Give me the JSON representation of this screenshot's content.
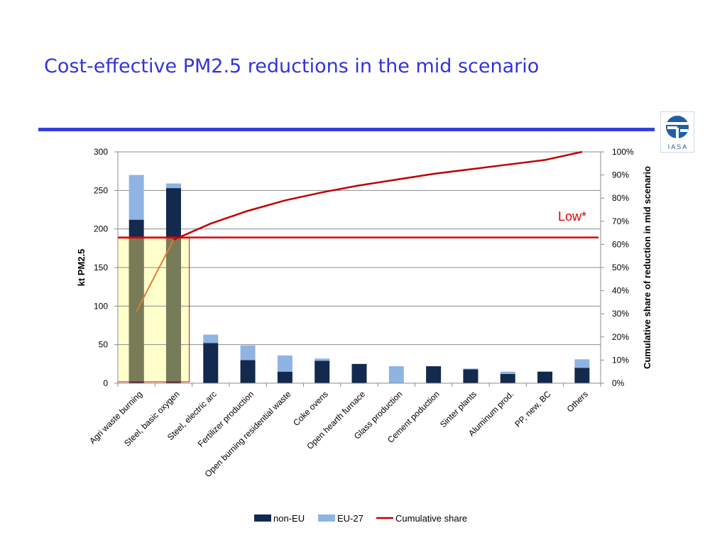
{
  "slide": {
    "title": "Cost-effective PM2.5 reductions in the mid scenario",
    "logo_text": "I A S A"
  },
  "chart_data": {
    "type": "bar",
    "stacked": true,
    "categories": [
      "Agri waste burning",
      "Steel, basic oxygen",
      "Steel, electric arc",
      "Fertilizer production",
      "Open burning residential waste",
      "Coke ovens",
      "Open hearth furnace",
      "Glass production",
      "Cement poduction",
      "Sinter plants",
      "Aluminum prod.",
      "PP, new, BC",
      "Others"
    ],
    "series": [
      {
        "name": "non-EU",
        "type": "bar",
        "color": "#132a4e",
        "values": [
          212,
          253,
          52,
          30,
          15,
          29,
          25,
          0,
          22,
          18,
          12,
          15,
          20
        ]
      },
      {
        "name": "EU-27",
        "type": "bar",
        "color": "#8fb4e3",
        "values": [
          58,
          6,
          11,
          19,
          21,
          3,
          0,
          22,
          0,
          1,
          3,
          0,
          11
        ]
      },
      {
        "name": "Cumulative share",
        "type": "line",
        "axis": "right",
        "color": "#c00000",
        "values": [
          31,
          62,
          69,
          74.5,
          79,
          82.5,
          85.5,
          88,
          90.5,
          92.5,
          94.5,
          96.5,
          100
        ]
      }
    ],
    "ylabel": "kt PM2.5",
    "ylim": [
      0,
      300
    ],
    "yticks": [
      0,
      50,
      100,
      150,
      200,
      250,
      300
    ],
    "y2label": "Cumulative share of reduction in mid scenario",
    "y2lim": [
      0,
      100
    ],
    "y2ticks": [
      "0%",
      "10%",
      "20%",
      "30%",
      "40%",
      "50%",
      "60%",
      "70%",
      "80%",
      "90%",
      "100%"
    ],
    "legend": {
      "position": "bottom",
      "entries": [
        "non-EU",
        "EU-27",
        "Cumulative share"
      ]
    },
    "grid": true,
    "annotations": {
      "threshold_label": "Low*",
      "threshold_share": 63,
      "threshold_color": "#e00000",
      "highlight_categories": [
        "Agri waste burning",
        "Steel, basic oxygen"
      ],
      "highlight_color": "#ffffcc",
      "highlight_border": "#e00000",
      "highlight_line_color": "#e07b39"
    }
  }
}
